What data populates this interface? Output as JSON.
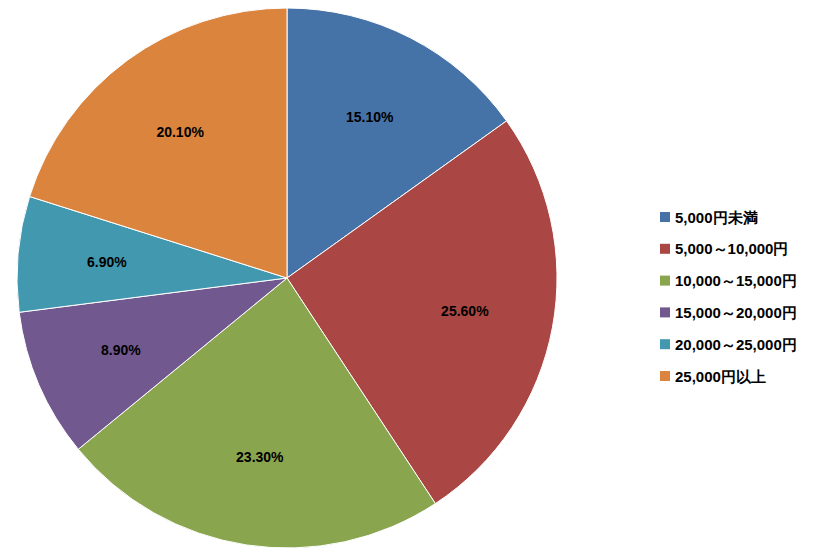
{
  "chart_data": {
    "type": "pie",
    "categories": [
      "5,000円未満",
      "5,000～10,000円",
      "10,000～15,000円",
      "15,000～20,000円",
      "20,000～25,000円",
      "25,000円以上"
    ],
    "values": [
      15.1,
      25.6,
      23.3,
      8.9,
      6.9,
      20.1
    ],
    "value_labels": [
      "15.10%",
      "25.60%",
      "23.30%",
      "8.90%",
      "6.90%",
      "20.10%"
    ],
    "colors": [
      "#4572a7",
      "#aa4643",
      "#89a54e",
      "#71588f",
      "#4198af",
      "#db843d"
    ],
    "data_labels": true,
    "legend": "right"
  }
}
